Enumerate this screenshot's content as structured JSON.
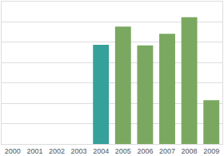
{
  "chart_data": {
    "type": "bar",
    "categories": [
      "2000",
      "2001",
      "2002",
      "2003",
      "2004",
      "2005",
      "2006",
      "2007",
      "2008",
      "2009"
    ],
    "values": [
      null,
      null,
      null,
      null,
      4.88,
      5.77,
      4.85,
      5.42,
      6.23,
      2.15
    ],
    "colors": [
      "#7aa860",
      "#7aa860",
      "#7aa860",
      "#7aa860",
      "#36a09a",
      "#7aa860",
      "#7aa860",
      "#7aa860",
      "#7aa860",
      "#7aa860"
    ],
    "ylim": [
      0,
      7
    ],
    "yticks": [
      0,
      1,
      2,
      3,
      4,
      5,
      6,
      7
    ],
    "grid": true,
    "tick_labels": "x"
  }
}
